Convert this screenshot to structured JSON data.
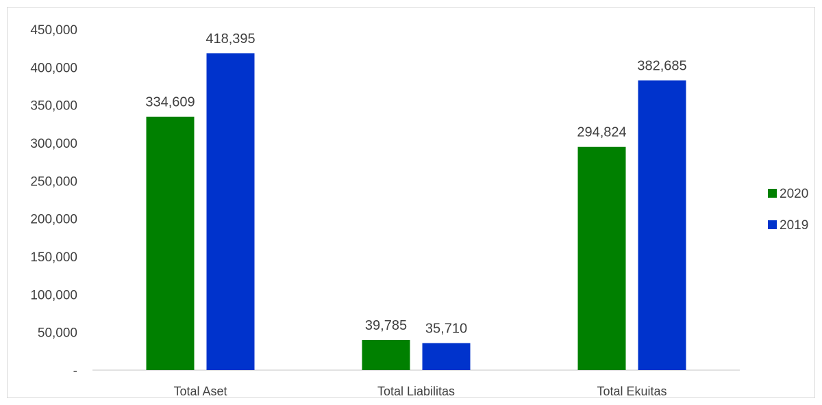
{
  "chart_data": {
    "type": "bar",
    "categories": [
      "Total Aset",
      "Total Liabilitas",
      "Total Ekuitas"
    ],
    "series": [
      {
        "name": "2020",
        "color": "#008000",
        "values": [
          334609,
          39785,
          294824
        ]
      },
      {
        "name": "2019",
        "color": "#0033cc",
        "values": [
          418395,
          35710,
          382685
        ]
      }
    ],
    "data_labels": [
      [
        "334,609",
        "39,785",
        "294,824"
      ],
      [
        "418,395",
        "35,710",
        "382,685"
      ]
    ],
    "y_ticks": [
      {
        "value": 0,
        "label": "-"
      },
      {
        "value": 50000,
        "label": "50,000"
      },
      {
        "value": 100000,
        "label": "100,000"
      },
      {
        "value": 150000,
        "label": "150,000"
      },
      {
        "value": 200000,
        "label": "200,000"
      },
      {
        "value": 250000,
        "label": "250,000"
      },
      {
        "value": 300000,
        "label": "300,000"
      },
      {
        "value": 350000,
        "label": "350,000"
      },
      {
        "value": 400000,
        "label": "400,000"
      },
      {
        "value": 450000,
        "label": "450,000"
      }
    ],
    "ylim": [
      0,
      450000
    ],
    "title": "",
    "xlabel": "",
    "ylabel": "",
    "grid": false,
    "legend_position": "right"
  }
}
